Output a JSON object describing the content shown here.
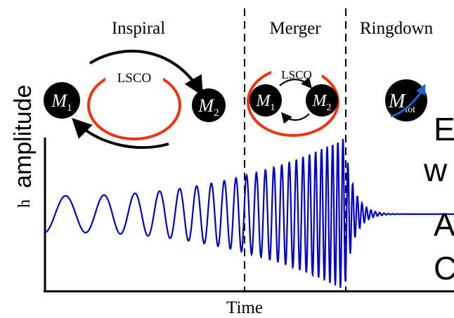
{
  "phases": {
    "inspiral": "Inspiral",
    "merger": "Merger",
    "ringdown": "Ringdown"
  },
  "axes": {
    "x_label": "Time",
    "y_label_symbol": "h",
    "y_label_word": "amplitude"
  },
  "orbit_labels": {
    "inspiral": "LSCO",
    "merger": "LSCO"
  },
  "masses": {
    "m1_base": "M",
    "m1_sub": "1",
    "m2_base": "M",
    "m2_sub": "2",
    "mtot_base": "M",
    "mtot_sub": "tot"
  },
  "cut_text": [
    "E",
    "w",
    "A",
    "C"
  ],
  "colors": {
    "waveform": "#0000cc",
    "orbit": "#ee3311",
    "mass_fill": "#000000",
    "spin_arrow": "#2266cc"
  }
}
